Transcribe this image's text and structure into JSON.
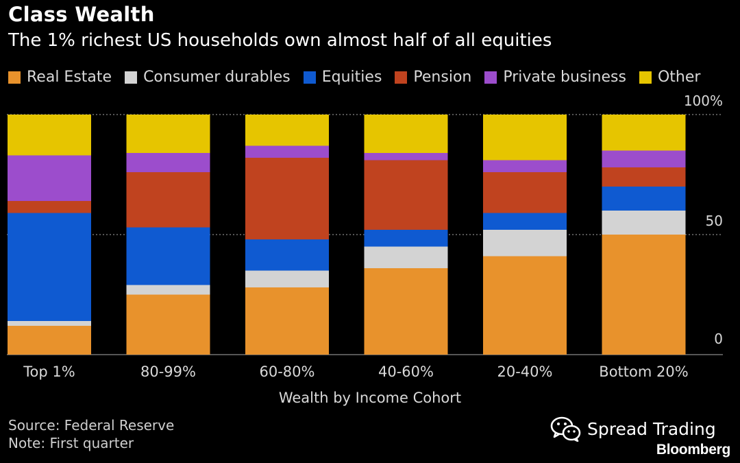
{
  "chart_data": {
    "type": "bar",
    "stacked": true,
    "title": "Class Wealth",
    "subtitle": "The 1% richest US households own almost half of all equities",
    "xlabel": "Wealth by Income Cohort",
    "ylabel": "",
    "ylim": [
      0,
      100
    ],
    "yticks": [
      {
        "value": 0,
        "label": "0"
      },
      {
        "value": 50,
        "label": "50"
      },
      {
        "value": 100,
        "label": "100%"
      }
    ],
    "legend_position": "top",
    "categories": [
      "Top 1%",
      "80-99%",
      "60-80%",
      "40-60%",
      "20-40%",
      "Bottom 20%"
    ],
    "series": [
      {
        "name": "Real Estate",
        "color": "#e8922c",
        "values": [
          12,
          25,
          28,
          36,
          41,
          50
        ]
      },
      {
        "name": "Consumer durables",
        "color": "#d3d3d3",
        "values": [
          2,
          4,
          7,
          9,
          11,
          10
        ]
      },
      {
        "name": "Equities",
        "color": "#0f5ad1",
        "values": [
          45,
          24,
          13,
          7,
          7,
          10
        ]
      },
      {
        "name": "Pension",
        "color": "#c0431f",
        "values": [
          5,
          23,
          34,
          29,
          17,
          8
        ]
      },
      {
        "name": "Private business",
        "color": "#9c4dcc",
        "values": [
          19,
          8,
          5,
          3,
          5,
          7
        ]
      },
      {
        "name": "Other",
        "color": "#e6c500",
        "values": [
          17,
          16,
          13,
          16,
          19,
          15
        ]
      }
    ]
  },
  "footer": {
    "source": "Source: Federal Reserve",
    "note": "Note: First quarter"
  },
  "watermark": {
    "text": "Spread Trading",
    "icon": "wechat-icon"
  },
  "brand": "Bloomberg"
}
